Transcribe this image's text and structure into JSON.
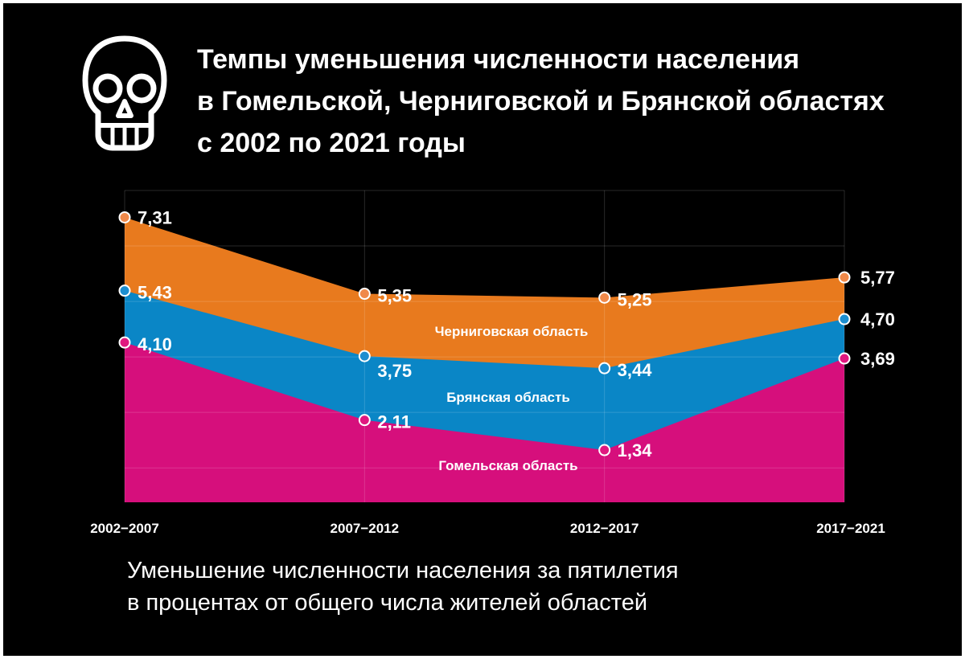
{
  "title": {
    "line1": "Темпы уменьшения численности населения",
    "line2": "в Гомельской, Черниговской и Брянской областях",
    "line3": "с 2002 по 2021 годы"
  },
  "caption": {
    "line1": "Уменьшение численности населения за пятилетия",
    "line2": "в процентах от общего числа жителей областей"
  },
  "icon": "skull-icon",
  "chart_data": {
    "type": "area",
    "stacked": false,
    "categories": [
      "2002−2007",
      "2007−2012",
      "2012−2017",
      "2017−2021"
    ],
    "ylim": [
      0,
      8
    ],
    "grid": true,
    "series": [
      {
        "name": "Черниговская область",
        "values": [
          7.31,
          5.35,
          5.25,
          5.77
        ],
        "labels": [
          "7,31",
          "5,35",
          "5,25",
          "5,77"
        ],
        "color": "#e87a1e",
        "marker_color": "#f0894a"
      },
      {
        "name": "Брянская область",
        "values": [
          5.43,
          3.75,
          3.44,
          4.7
        ],
        "labels": [
          "5,43",
          "3,75",
          "3,44",
          "4,70"
        ],
        "color": "#0a86c6",
        "marker_color": "#1c8ed0"
      },
      {
        "name": "Гомельская область",
        "values": [
          4.1,
          2.11,
          1.34,
          3.69
        ],
        "labels": [
          "4,10",
          "2,11",
          "1,34",
          "3,69"
        ],
        "color": "#d60f7c",
        "marker_color": "#e0187f"
      }
    ]
  }
}
